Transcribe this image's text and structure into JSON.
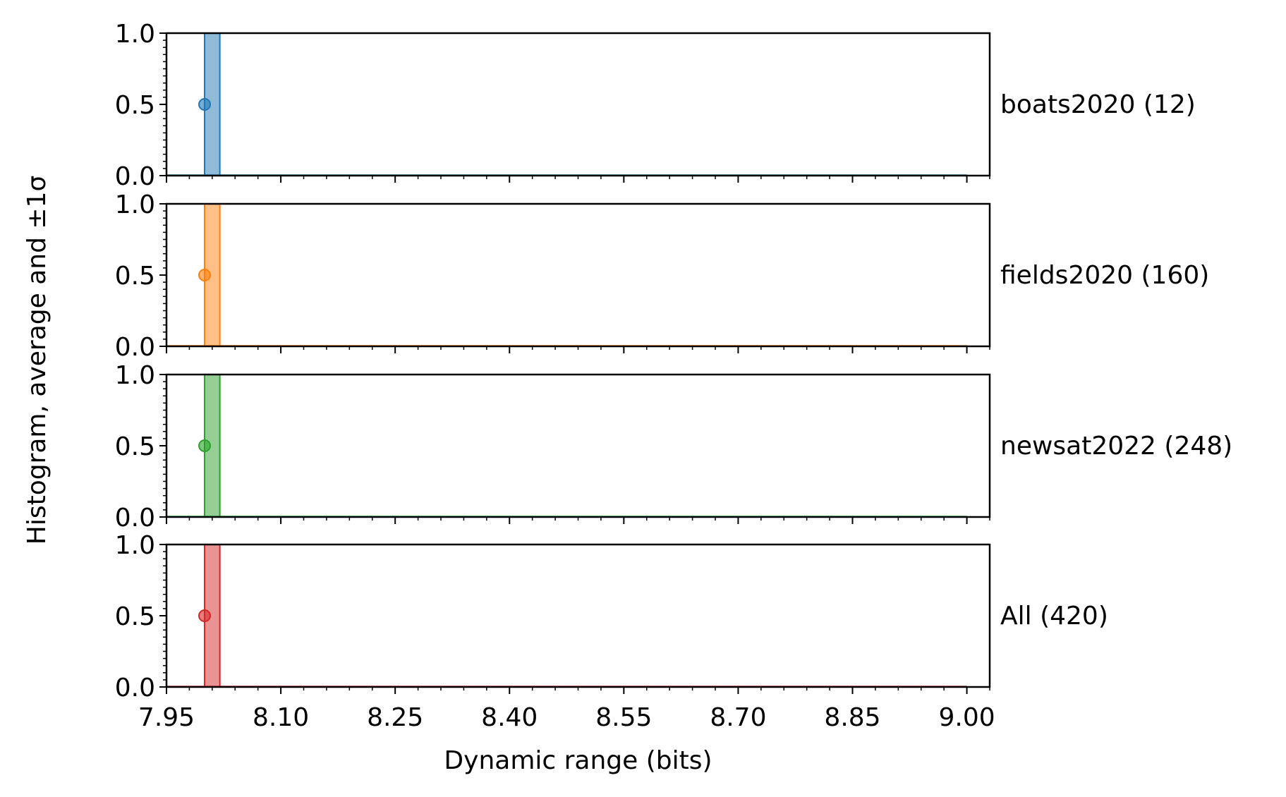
{
  "chart_data": {
    "type": "histogram",
    "xlabel": "Dynamic range (bits)",
    "ylabel": "Histogram, average and ±1σ",
    "xlim": [
      7.95,
      9.03
    ],
    "ylim": [
      0.0,
      1.0
    ],
    "x_ticks": [
      "7.95",
      "8.10",
      "8.25",
      "8.40",
      "8.55",
      "8.70",
      "8.85",
      "9.00"
    ],
    "y_ticks": [
      "0.0",
      "0.5",
      "1.0"
    ],
    "grid": false,
    "panels": [
      {
        "label": "boats2020 (12)",
        "color": "#1f77b4",
        "bin": [
          8.0,
          8.02
        ],
        "mean": 8.0,
        "height": 1.0,
        "point_y": 0.5
      },
      {
        "label": "fields2020 (160)",
        "color": "#ff7f0e",
        "bin": [
          8.0,
          8.02
        ],
        "mean": 8.0,
        "height": 1.0,
        "point_y": 0.5
      },
      {
        "label": "newsat2022 (248)",
        "color": "#2ca02c",
        "bin": [
          8.0,
          8.02
        ],
        "mean": 8.0,
        "height": 1.0,
        "point_y": 0.5
      },
      {
        "label": "All (420)",
        "color": "#d62728",
        "bin": [
          8.0,
          8.02
        ],
        "mean": 8.0,
        "height": 1.0,
        "point_y": 0.5
      }
    ]
  }
}
